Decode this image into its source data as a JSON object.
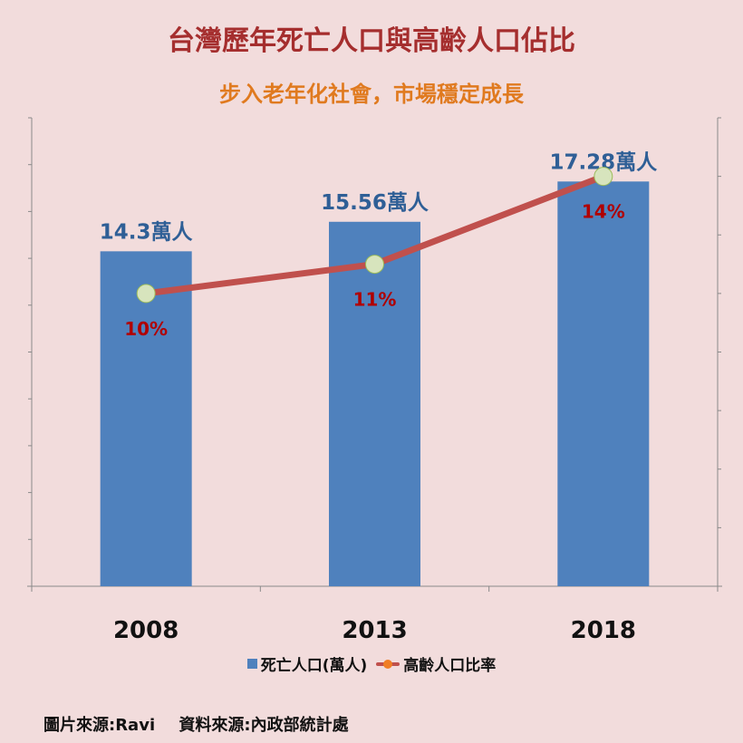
{
  "chart_data": {
    "type": "bar",
    "title": "台灣歷年死亡人口與高齡人口佔比",
    "subtitle": "步入老年化社會，市場穩定成長",
    "categories": [
      "2008",
      "2013",
      "2018"
    ],
    "series": [
      {
        "name": "死亡人口(萬人)",
        "type": "bar",
        "values": [
          14.3,
          15.56,
          17.28
        ],
        "labels": [
          "14.3萬人",
          "15.56萬人",
          "17.28萬人"
        ],
        "color": "#4f81bd"
      },
      {
        "name": "高齡人口比率",
        "type": "line",
        "values": [
          10,
          11,
          14
        ],
        "labels": [
          "10%",
          "11%",
          "14%"
        ],
        "color": "#c0504d",
        "marker_color": "#d7e4bd"
      }
    ],
    "bar_ylim": [
      0,
      20
    ],
    "line_ylim": [
      0,
      16
    ],
    "grid": false,
    "legend": "bottom"
  },
  "source": {
    "image": "圖片來源:Ravi",
    "data": "資料來源:內政部統計處"
  },
  "colors": {
    "background": "#f2dcdc",
    "title": "#a52e2e",
    "subtitle": "#e07a1f",
    "bar_label": "#2f5f96",
    "line_label": "#b00000"
  }
}
